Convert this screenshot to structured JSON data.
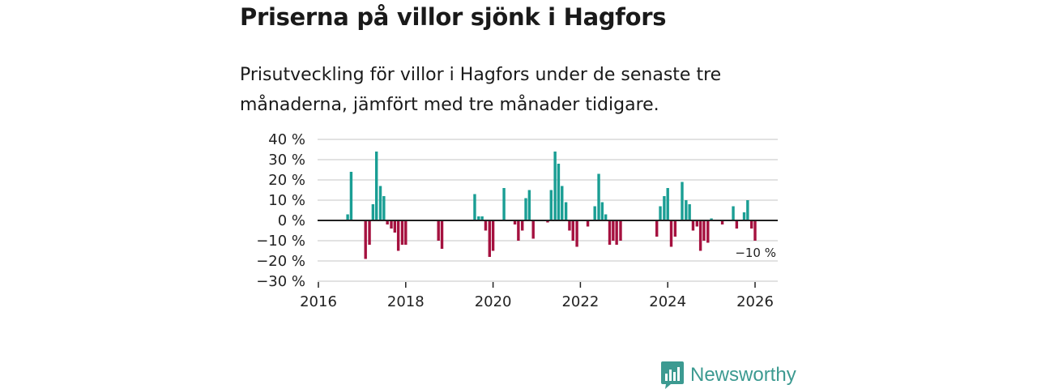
{
  "header": {
    "title": "Priserna på villor sjönk i Hagfors",
    "subtitle": "Prisutveckling för villor i Hagfors under de senaste tre månaderna, jämfört med tre månader tidigare."
  },
  "brand": {
    "name": "Newsworthy"
  },
  "colors": {
    "positive": "#1a9e94",
    "negative": "#a5113f",
    "grid": "#d9d9d9",
    "axis": "#222222",
    "brand": "#3c9a91"
  },
  "chart_data": {
    "type": "bar",
    "title": "Priserna på villor sjönk i Hagfors",
    "xlabel": "",
    "ylabel": "",
    "ylim": [
      -30,
      40
    ],
    "xlim": [
      2016,
      2026.5
    ],
    "yticks": [
      40,
      30,
      20,
      10,
      0,
      -10,
      -20,
      -30
    ],
    "ytick_labels": [
      "40 %",
      "30 %",
      "20 %",
      "10 %",
      "0 %",
      "−10 %",
      "−20 %",
      "−30 %"
    ],
    "xticks": [
      2016,
      2018,
      2020,
      2022,
      2024,
      2026
    ],
    "xtick_labels": [
      "2016",
      "2018",
      "2020",
      "2022",
      "2024",
      "2026"
    ],
    "annotation": "−10 %",
    "series": [
      {
        "name": "Prisutveckling",
        "x": [
          2016.67,
          2016.75,
          2017.08,
          2017.17,
          2017.25,
          2017.33,
          2017.42,
          2017.5,
          2017.58,
          2017.67,
          2017.75,
          2017.83,
          2017.92,
          2018.0,
          2018.08,
          2018.75,
          2018.83,
          2019.58,
          2019.67,
          2019.75,
          2019.83,
          2019.92,
          2020.0,
          2020.25,
          2020.5,
          2020.58,
          2020.67,
          2020.75,
          2020.83,
          2020.92,
          2021.25,
          2021.33,
          2021.42,
          2021.5,
          2021.58,
          2021.67,
          2021.75,
          2021.83,
          2021.92,
          2022.17,
          2022.33,
          2022.42,
          2022.5,
          2022.58,
          2022.67,
          2022.75,
          2022.83,
          2022.92,
          2023.75,
          2023.83,
          2023.92,
          2024.0,
          2024.08,
          2024.17,
          2024.33,
          2024.42,
          2024.5,
          2024.58,
          2024.67,
          2024.75,
          2024.83,
          2024.92,
          2025.0,
          2025.25,
          2025.5,
          2025.58,
          2025.75,
          2025.83,
          2025.92,
          2026.0
        ],
        "values": [
          3,
          24,
          -19,
          -12,
          8,
          34,
          17,
          12,
          -2,
          -4,
          -6,
          -15,
          -12,
          -12,
          0,
          -10,
          -14,
          13,
          2,
          2,
          -5,
          -18,
          -15,
          16,
          -2,
          -10,
          -5,
          11,
          15,
          -9,
          -1,
          15,
          34,
          28,
          17,
          9,
          -5,
          -10,
          -13,
          -3,
          7,
          23,
          9,
          3,
          -12,
          -10,
          -12,
          -10,
          -8,
          7,
          12,
          16,
          -13,
          -8,
          19,
          10,
          8,
          -5,
          -3,
          -15,
          -10,
          -11,
          1,
          -2,
          7,
          -4,
          4,
          10,
          -4,
          -10
        ]
      }
    ]
  }
}
